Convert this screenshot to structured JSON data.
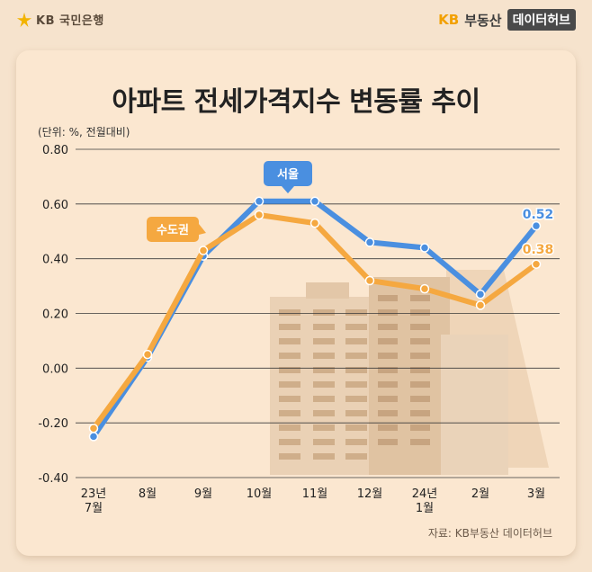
{
  "header": {
    "bank_logo_text": "KB 국민은행",
    "brand_kb": "KB",
    "brand_name": "부동산",
    "brand_tag": "데이터허브"
  },
  "colors": {
    "seoul": "#4a8fe0",
    "metro": "#f5a840",
    "grid": "#3a3a3a"
  },
  "chart_data": {
    "type": "line",
    "title": "아파트 전세가격지수 변동률 추이",
    "unit_label": "(단위: %, 전월대비)",
    "categories": [
      [
        "23년",
        "7월"
      ],
      [
        "8월"
      ],
      [
        "9월"
      ],
      [
        "10월"
      ],
      [
        "11월"
      ],
      [
        "12월"
      ],
      [
        "24년",
        "1월"
      ],
      [
        "2월"
      ],
      [
        "3월"
      ]
    ],
    "ylim": [
      -0.4,
      0.8
    ],
    "yticks": [
      "0.80",
      "0.60",
      "0.40",
      "0.20",
      "0.00",
      "-0.20",
      "-0.40"
    ],
    "series": [
      {
        "name": "서울",
        "color": "#4a8fe0",
        "values": [
          -0.25,
          0.04,
          0.41,
          0.61,
          0.61,
          0.46,
          0.44,
          0.27,
          0.52
        ],
        "end_label": "0.52"
      },
      {
        "name": "수도권",
        "color": "#f5a840",
        "values": [
          -0.22,
          0.05,
          0.43,
          0.56,
          0.53,
          0.32,
          0.29,
          0.23,
          0.38
        ],
        "end_label": "0.38"
      }
    ],
    "source": "자료: KB부동산 데이터허브"
  }
}
